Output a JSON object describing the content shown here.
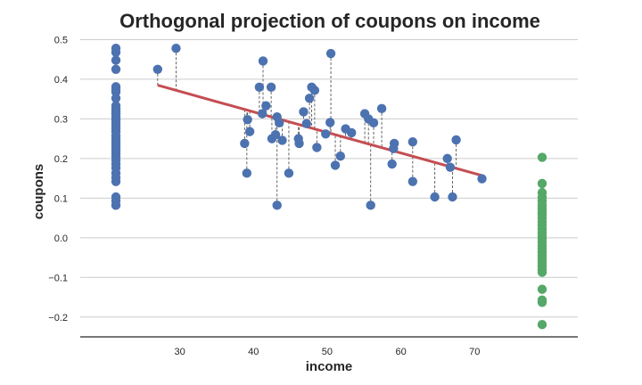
{
  "chart_data": {
    "type": "scatter",
    "title": "Orthogonal projection of coupons on income",
    "xlabel": "income",
    "ylabel": "coupons",
    "xlim": [
      16.5,
      84
    ],
    "ylim": [
      -0.25,
      0.51
    ],
    "xticks": [
      "30",
      "40",
      "50",
      "60",
      "70"
    ],
    "yticks": [
      "−0.2",
      "−0.1",
      "0.0",
      "0.1",
      "0.2",
      "0.3",
      "0.4",
      "0.5"
    ],
    "grid": "horizontal",
    "legend": "none",
    "colors": {
      "points": "#4c72b0",
      "residuals": "#55a868",
      "fit": "#c44e52",
      "projection": "#555555"
    },
    "fit_line": {
      "x": [
        27,
        71
      ],
      "y": [
        0.385,
        0.157
      ]
    },
    "points": [
      {
        "x": 27.0,
        "y": 0.425
      },
      {
        "x": 29.5,
        "y": 0.478
      },
      {
        "x": 38.8,
        "y": 0.238
      },
      {
        "x": 39.2,
        "y": 0.298
      },
      {
        "x": 39.5,
        "y": 0.268
      },
      {
        "x": 39.1,
        "y": 0.163
      },
      {
        "x": 40.8,
        "y": 0.38
      },
      {
        "x": 41.2,
        "y": 0.313
      },
      {
        "x": 41.3,
        "y": 0.446
      },
      {
        "x": 41.7,
        "y": 0.333
      },
      {
        "x": 42.4,
        "y": 0.38
      },
      {
        "x": 42.5,
        "y": 0.25
      },
      {
        "x": 43.0,
        "y": 0.26
      },
      {
        "x": 43.2,
        "y": 0.305
      },
      {
        "x": 43.5,
        "y": 0.29
      },
      {
        "x": 43.9,
        "y": 0.246
      },
      {
        "x": 43.2,
        "y": 0.082
      },
      {
        "x": 44.8,
        "y": 0.163
      },
      {
        "x": 46.1,
        "y": 0.25
      },
      {
        "x": 46.2,
        "y": 0.238
      },
      {
        "x": 46.8,
        "y": 0.318
      },
      {
        "x": 47.2,
        "y": 0.288
      },
      {
        "x": 47.6,
        "y": 0.352
      },
      {
        "x": 47.9,
        "y": 0.38
      },
      {
        "x": 48.3,
        "y": 0.372
      },
      {
        "x": 48.6,
        "y": 0.228
      },
      {
        "x": 49.8,
        "y": 0.262
      },
      {
        "x": 50.4,
        "y": 0.291
      },
      {
        "x": 50.5,
        "y": 0.465
      },
      {
        "x": 51.1,
        "y": 0.183
      },
      {
        "x": 51.8,
        "y": 0.206
      },
      {
        "x": 52.5,
        "y": 0.275
      },
      {
        "x": 53.3,
        "y": 0.265
      },
      {
        "x": 55.1,
        "y": 0.313
      },
      {
        "x": 55.6,
        "y": 0.3
      },
      {
        "x": 55.9,
        "y": 0.082
      },
      {
        "x": 56.3,
        "y": 0.29
      },
      {
        "x": 57.4,
        "y": 0.326
      },
      {
        "x": 58.8,
        "y": 0.186
      },
      {
        "x": 59.1,
        "y": 0.238
      },
      {
        "x": 59.0,
        "y": 0.225
      },
      {
        "x": 61.6,
        "y": 0.242
      },
      {
        "x": 61.6,
        "y": 0.142
      },
      {
        "x": 64.6,
        "y": 0.103
      },
      {
        "x": 66.3,
        "y": 0.2
      },
      {
        "x": 66.7,
        "y": 0.178
      },
      {
        "x": 67.0,
        "y": 0.103
      },
      {
        "x": 67.5,
        "y": 0.247
      },
      {
        "x": 71.0,
        "y": 0.149
      }
    ],
    "projected_coordinates": [
      0.478,
      0.468,
      0.448,
      0.425,
      0.381,
      0.375,
      0.368,
      0.352,
      0.333,
      0.325,
      0.318,
      0.313,
      0.305,
      0.298,
      0.29,
      0.282,
      0.275,
      0.268,
      0.258,
      0.25,
      0.242,
      0.236,
      0.228,
      0.22,
      0.212,
      0.205,
      0.196,
      0.186,
      0.176,
      0.163,
      0.152,
      0.142,
      0.103,
      0.093,
      0.082
    ],
    "residuals": [
      0.203,
      0.137,
      0.114,
      0.102,
      0.093,
      0.082,
      0.073,
      0.065,
      0.059,
      0.05,
      0.04,
      0.032,
      0.022,
      0.013,
      0.004,
      -0.002,
      -0.011,
      -0.02,
      -0.028,
      -0.037,
      -0.046,
      -0.054,
      -0.063,
      -0.072,
      -0.081,
      -0.087,
      -0.13,
      -0.157,
      -0.163,
      -0.219
    ]
  }
}
